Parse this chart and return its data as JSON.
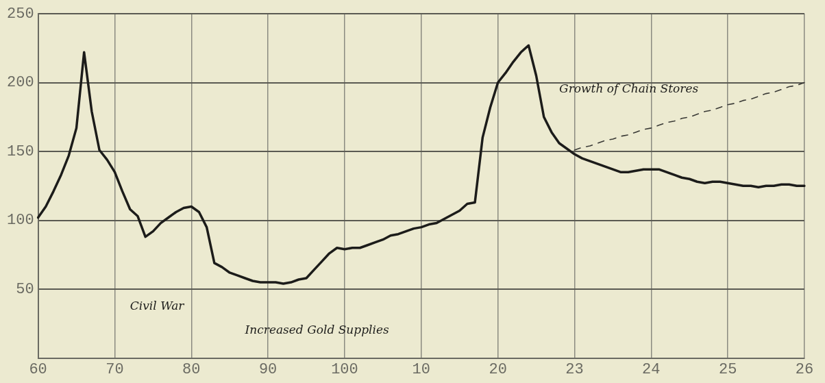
{
  "chart_data": {
    "type": "line",
    "categories": [
      "60",
      null,
      null,
      null,
      null,
      null,
      null,
      null,
      null,
      null,
      "70",
      null,
      null,
      null,
      null,
      null,
      null,
      null,
      null,
      null,
      "80",
      null,
      null,
      null,
      null,
      null,
      null,
      null,
      null,
      null,
      "90",
      null,
      null,
      null,
      null,
      null,
      null,
      null,
      null,
      null,
      "100",
      null,
      null,
      null,
      null,
      null,
      null,
      null,
      null,
      null,
      "10",
      null,
      null,
      null,
      null,
      null,
      null,
      null,
      null,
      null,
      "20",
      null,
      null,
      null,
      null,
      null,
      null,
      null,
      null,
      null,
      "23",
      null,
      null,
      null,
      null,
      null,
      null,
      null,
      null,
      null,
      "24",
      null,
      null,
      null,
      null,
      null,
      null,
      null,
      null,
      null,
      "25",
      null,
      null,
      null,
      null,
      null,
      null,
      null,
      null,
      null,
      "26"
    ],
    "series": [
      {
        "color": "#1c1c1a",
        "line_style": "solid",
        "values": [
          102,
          110,
          121,
          133,
          147,
          167,
          222,
          179,
          151,
          144,
          135,
          121,
          108,
          103,
          88,
          92,
          98,
          102,
          106,
          109,
          110,
          106,
          95,
          69,
          66,
          62,
          60,
          58,
          56,
          55,
          55,
          55,
          54,
          55,
          57,
          58,
          64,
          70,
          76,
          80,
          79,
          80,
          80,
          82,
          84,
          86,
          89,
          90,
          92,
          94,
          95,
          97,
          98,
          101,
          104,
          107,
          112,
          113,
          160,
          182,
          200,
          207,
          215,
          222,
          227,
          205,
          175,
          164,
          156,
          152,
          148,
          145,
          143,
          141,
          139,
          137,
          135,
          135,
          136,
          137,
          137,
          137,
          135,
          133,
          131,
          130,
          128,
          127,
          128,
          128,
          127,
          126,
          125,
          125,
          124,
          125,
          125,
          126,
          126,
          125,
          125
        ]
      },
      {
        "color": "#3a3a36",
        "line_style": "dashed",
        "values": [
          null,
          null,
          null,
          null,
          null,
          null,
          null,
          null,
          null,
          null,
          null,
          null,
          null,
          null,
          null,
          null,
          null,
          null,
          null,
          null,
          null,
          null,
          null,
          null,
          null,
          null,
          null,
          null,
          null,
          null,
          null,
          null,
          null,
          null,
          null,
          null,
          null,
          null,
          null,
          null,
          null,
          null,
          null,
          null,
          null,
          null,
          null,
          null,
          null,
          null,
          null,
          null,
          null,
          null,
          null,
          null,
          null,
          null,
          null,
          null,
          null,
          null,
          null,
          null,
          null,
          null,
          null,
          null,
          null,
          null,
          151,
          153,
          154,
          156,
          158,
          159,
          161,
          162,
          164,
          166,
          167,
          169,
          171,
          172,
          174,
          175,
          177,
          179,
          180,
          182,
          184,
          185,
          187,
          188,
          190,
          192,
          193,
          195,
          197,
          198,
          200
        ]
      }
    ],
    "ylim": [
      0,
      250
    ],
    "yticks": [
      {
        "value": 0,
        "label": null
      },
      50,
      100,
      150,
      200,
      250
    ],
    "grid": true,
    "legend": false,
    "marker": "none",
    "annotations": [
      "Civil War",
      "Increased Gold Supplies",
      "Growth of Chain Stores"
    ]
  }
}
